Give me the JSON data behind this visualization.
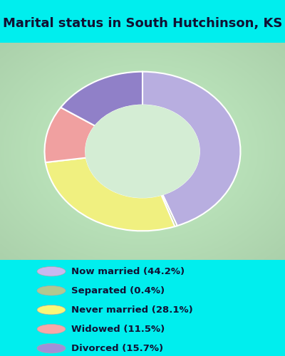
{
  "title": "Marital status in South Hutchinson, KS",
  "title_fontsize": 13,
  "background_cyan": "#00EEEE",
  "background_chart_color": "#c8e8c8",
  "categories": [
    "Now married",
    "Separated",
    "Never married",
    "Widowed",
    "Divorced"
  ],
  "values": [
    44.2,
    0.4,
    28.1,
    11.5,
    15.7
  ],
  "colors": [
    "#b8aee0",
    "#a8b888",
    "#f0f080",
    "#f0a0a0",
    "#9080c8"
  ],
  "legend_labels": [
    "Now married (44.2%)",
    "Separated (0.4%)",
    "Never married (28.1%)",
    "Widowed (11.5%)",
    "Divorced (15.7%)"
  ],
  "legend_colors": [
    "#c8b8f0",
    "#b0c890",
    "#f8f878",
    "#f8a8a8",
    "#a090d8"
  ],
  "donut_inner_ratio": 0.58,
  "figsize": [
    4.0,
    5.0
  ],
  "dpi": 100
}
